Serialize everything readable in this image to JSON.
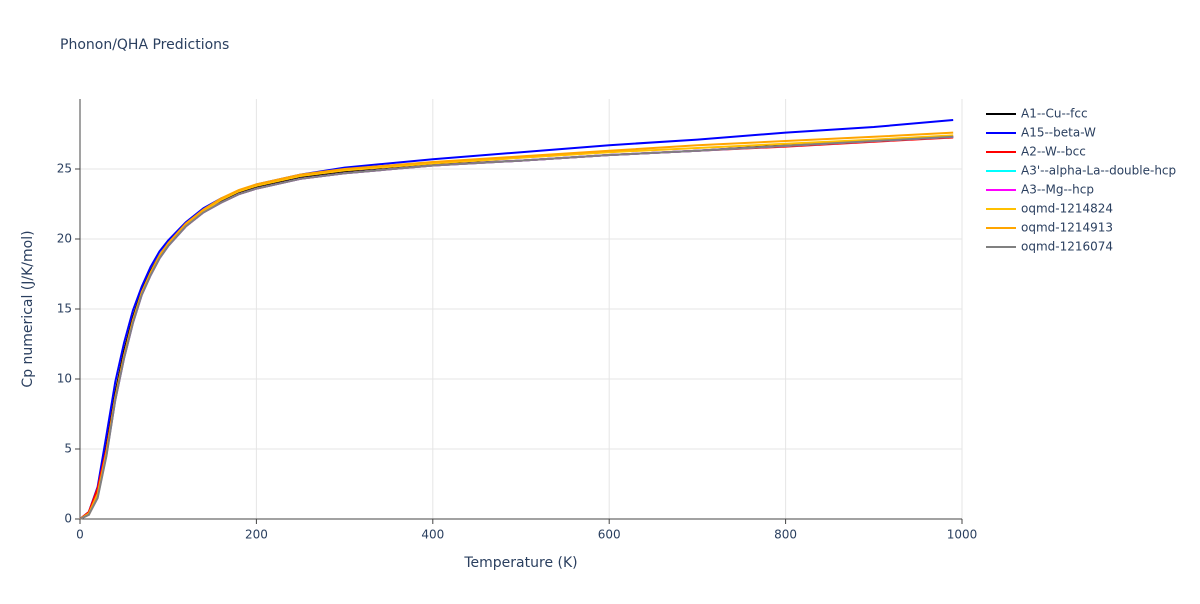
{
  "chart_data": {
    "type": "line",
    "title": "Phonon/QHA Predictions",
    "xlabel": "Temperature (K)",
    "ylabel": "Cp numerical (J/K/mol)",
    "x": [
      0,
      10,
      20,
      30,
      40,
      50,
      60,
      70,
      80,
      90,
      100,
      120,
      140,
      160,
      180,
      200,
      250,
      300,
      400,
      500,
      600,
      700,
      800,
      900,
      990
    ],
    "xlim": [
      0,
      1000
    ],
    "xticks": [
      0,
      200,
      400,
      600,
      800,
      1000
    ],
    "ylim": [
      0,
      30
    ],
    "yticks": [
      0,
      5,
      10,
      15,
      20,
      25
    ],
    "grid": true,
    "series": [
      {
        "name": "A1--Cu--fcc",
        "color": "#000000",
        "values": [
          0,
          0.4,
          1.9,
          5.2,
          9.0,
          12.0,
          14.4,
          16.3,
          17.7,
          18.8,
          19.7,
          21.0,
          22.0,
          22.7,
          23.3,
          23.7,
          24.4,
          24.8,
          25.3,
          25.6,
          26.0,
          26.3,
          26.7,
          27.0,
          27.3
        ]
      },
      {
        "name": "A15--beta-W",
        "color": "#0000ff",
        "values": [
          0,
          0.5,
          2.3,
          6.0,
          9.8,
          12.6,
          14.9,
          16.6,
          18.0,
          19.1,
          19.9,
          21.2,
          22.2,
          22.9,
          23.4,
          23.9,
          24.6,
          25.1,
          25.7,
          26.2,
          26.7,
          27.1,
          27.6,
          28.0,
          28.5
        ]
      },
      {
        "name": "A2--W--bcc",
        "color": "#ff0000",
        "values": [
          0,
          0.5,
          2.2,
          5.0,
          8.7,
          11.7,
          14.2,
          16.1,
          17.5,
          18.7,
          19.6,
          20.9,
          21.9,
          22.6,
          23.2,
          23.6,
          24.3,
          24.7,
          25.25,
          25.6,
          26.0,
          26.3,
          26.6,
          26.95,
          27.25
        ]
      },
      {
        "name": "A3'--alpha-La--double-hcp",
        "color": "#00ffff",
        "values": [
          0,
          0.3,
          1.6,
          4.6,
          8.5,
          11.5,
          14.0,
          16.0,
          17.4,
          18.6,
          19.5,
          20.9,
          21.9,
          22.6,
          23.2,
          23.6,
          24.3,
          24.7,
          25.25,
          25.6,
          26.0,
          26.3,
          26.65,
          27.0,
          27.3
        ]
      },
      {
        "name": "A3--Mg--hcp",
        "color": "#ff00ff",
        "values": [
          0,
          0.3,
          1.6,
          4.6,
          8.5,
          11.5,
          14.0,
          16.0,
          17.4,
          18.6,
          19.5,
          20.9,
          21.9,
          22.6,
          23.2,
          23.6,
          24.3,
          24.7,
          25.25,
          25.6,
          26.0,
          26.3,
          26.65,
          27.0,
          27.3
        ]
      },
      {
        "name": "oqmd-1214824",
        "color": "#ffc000",
        "values": [
          0,
          0.3,
          1.6,
          4.7,
          8.6,
          11.6,
          14.1,
          16.1,
          17.5,
          18.7,
          19.6,
          21.0,
          22.0,
          22.8,
          23.4,
          23.8,
          24.5,
          24.9,
          25.4,
          25.8,
          26.2,
          26.5,
          26.8,
          27.1,
          27.4
        ]
      },
      {
        "name": "oqmd-1214913",
        "color": "#ffa500",
        "values": [
          0,
          0.4,
          1.8,
          4.8,
          8.7,
          11.7,
          14.2,
          16.2,
          17.6,
          18.8,
          19.7,
          21.1,
          22.1,
          22.9,
          23.5,
          23.9,
          24.6,
          25.0,
          25.5,
          25.9,
          26.3,
          26.7,
          27.0,
          27.3,
          27.6
        ]
      },
      {
        "name": "oqmd-1216074",
        "color": "#808080",
        "values": [
          0,
          0.3,
          1.5,
          4.5,
          8.5,
          11.5,
          14.0,
          16.0,
          17.4,
          18.6,
          19.5,
          20.9,
          21.9,
          22.6,
          23.2,
          23.6,
          24.3,
          24.7,
          25.25,
          25.6,
          26.0,
          26.3,
          26.65,
          27.0,
          27.3
        ]
      }
    ]
  }
}
